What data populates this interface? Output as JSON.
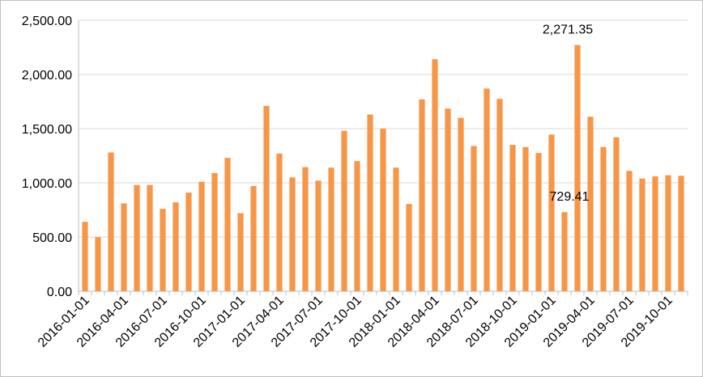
{
  "chart_data": {
    "type": "bar",
    "title": "",
    "xlabel": "",
    "ylabel": "",
    "ylim": [
      0,
      2500
    ],
    "y_ticks": [
      "0.00",
      "500.00",
      "1,000.00",
      "1,500.00",
      "2,000.00",
      "2,500.00"
    ],
    "y_tick_values": [
      0,
      500,
      1000,
      1500,
      2000,
      2500
    ],
    "x_tick_labels": [
      "2016-01-01",
      "2016-04-01",
      "2016-07-01",
      "2016-10-01",
      "2017-01-01",
      "2017-04-01",
      "2017-07-01",
      "2017-10-01",
      "2018-01-01",
      "2018-04-01",
      "2018-07-01",
      "2018-10-01",
      "2019-01-01",
      "2019-04-01",
      "2019-07-01",
      "2019-10-01"
    ],
    "x_tick_indices": [
      0,
      3,
      6,
      9,
      12,
      15,
      18,
      21,
      24,
      27,
      30,
      33,
      36,
      39,
      42,
      45
    ],
    "grid": true,
    "legend": "none",
    "bar_color": "#F79646",
    "grid_color": "#d9d9d9",
    "categories": [
      "2016-01-01",
      "2016-02-01",
      "2016-03-01",
      "2016-04-01",
      "2016-05-01",
      "2016-06-01",
      "2016-07-01",
      "2016-08-01",
      "2016-09-01",
      "2016-10-01",
      "2016-11-01",
      "2016-12-01",
      "2017-01-01",
      "2017-02-01",
      "2017-03-01",
      "2017-04-01",
      "2017-05-01",
      "2017-06-01",
      "2017-07-01",
      "2017-08-01",
      "2017-09-01",
      "2017-10-01",
      "2017-11-01",
      "2017-12-01",
      "2018-01-01",
      "2018-02-01",
      "2018-03-01",
      "2018-04-01",
      "2018-05-01",
      "2018-06-01",
      "2018-07-01",
      "2018-08-01",
      "2018-09-01",
      "2018-10-01",
      "2018-11-01",
      "2018-12-01",
      "2019-01-01",
      "2019-02-01",
      "2019-03-01",
      "2019-04-01",
      "2019-05-01",
      "2019-06-01",
      "2019-07-01",
      "2019-08-01",
      "2019-09-01",
      "2019-10-01",
      "2019-11-01"
    ],
    "values": [
      640,
      500,
      1280,
      810,
      980,
      980,
      760,
      820,
      910,
      1010,
      1090,
      1230,
      720,
      970,
      1710,
      1270,
      1050,
      1145,
      1020,
      1140,
      1480,
      1200,
      1630,
      1500,
      1140,
      805,
      1770,
      2140,
      1685,
      1600,
      1340,
      1870,
      1775,
      1350,
      1330,
      1275,
      1445,
      729.41,
      2271.35,
      1610,
      1330,
      1420,
      1110,
      1040,
      1060,
      1070,
      1065
    ],
    "annotations": [
      {
        "text": "2,271.35",
        "index": 38
      },
      {
        "text": "729.41",
        "index": 37
      }
    ]
  }
}
